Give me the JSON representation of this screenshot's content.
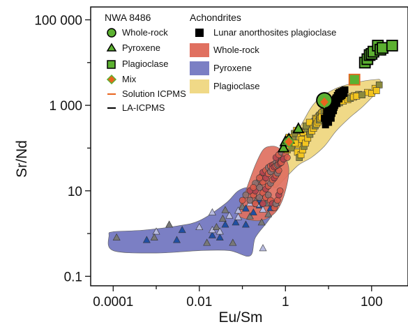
{
  "chart_data": {
    "type": "scatter",
    "xlabel": "Eu/Sm",
    "ylabel": "Sr/Nd",
    "x_scale": "log",
    "y_scale": "log",
    "xlim": [
      3e-05,
      700
    ],
    "ylim": [
      0.06,
      200000
    ],
    "x_ticks": [
      0.0001,
      0.01,
      1,
      100
    ],
    "x_tick_labels": [
      "0.0001",
      "0.01",
      "1",
      "100"
    ],
    "y_ticks": [
      0.1,
      10,
      1000,
      100000
    ],
    "y_tick_labels": [
      "0.1",
      "10",
      "1 000",
      "100 000"
    ],
    "grid": false,
    "legend_placement": "top",
    "legend": {
      "nwa_title": "NWA 8486",
      "achondrites_title": "Achondrites",
      "whole_rock": "Whole-rock",
      "pyroxene": "Pyroxene",
      "plagioclase": "Plagioclase",
      "mix": "Mix",
      "solution_icpms": "Solution ICPMS",
      "la_icpms": "LA-ICPMS",
      "lunar_anorthosites": "Lunar anorthosites plagioclase",
      "field_whole_rock": "Whole-rock",
      "field_pyroxene": "Pyroxene",
      "field_plagioclase": "Plagioclase"
    },
    "colors": {
      "whole_rock_field": "#e07060",
      "pyroxene_field": "#7b7fc4",
      "plagioclase_field": "#f0d987",
      "nwa_green": "#5cb131",
      "mix_orange": "#e8641e",
      "lunar_black": "#000000",
      "achondrite_pyx_blue": "#1f4fa3",
      "achondrite_pyx_grey": "#777777",
      "achondrite_wr_red": "#d65a4a",
      "achondrite_wr_grey": "#8a7070",
      "achondrite_plag_yellow": "#f3c51f",
      "achondrite_plag_olive": "#8b8a3d"
    },
    "fields": {
      "plagioclase": [
        [
          0.5,
          15
        ],
        [
          0.7,
          35
        ],
        [
          1.2,
          100
        ],
        [
          2.5,
          400
        ],
        [
          5,
          1200
        ],
        [
          15,
          2500
        ],
        [
          50,
          3500
        ],
        [
          120,
          4000
        ],
        [
          160,
          3800
        ],
        [
          140,
          2200
        ],
        [
          100,
          1500
        ],
        [
          60,
          900
        ],
        [
          30,
          500
        ],
        [
          15,
          250
        ],
        [
          8,
          110
        ],
        [
          4,
          60
        ],
        [
          2,
          40
        ],
        [
          1,
          20
        ],
        [
          0.6,
          12
        ]
      ],
      "whole_rock": [
        [
          0.08,
          3
        ],
        [
          0.12,
          10
        ],
        [
          0.2,
          40
        ],
        [
          0.3,
          90
        ],
        [
          0.45,
          110
        ],
        [
          0.7,
          100
        ],
        [
          1,
          60
        ],
        [
          1.2,
          30
        ],
        [
          1,
          10
        ],
        [
          0.7,
          4
        ],
        [
          0.45,
          2.5
        ],
        [
          0.25,
          2
        ],
        [
          0.12,
          2.2
        ]
      ],
      "pyroxene": [
        [
          8e-05,
          0.9
        ],
        [
          0.0001,
          0.4
        ],
        [
          0.001,
          0.35
        ],
        [
          0.01,
          0.4
        ],
        [
          0.05,
          0.4
        ],
        [
          0.15,
          0.3
        ],
        [
          0.2,
          0.8
        ],
        [
          0.4,
          2
        ],
        [
          0.6,
          4
        ],
        [
          0.5,
          6
        ],
        [
          0.3,
          9
        ],
        [
          0.15,
          12
        ],
        [
          0.08,
          10
        ],
        [
          0.04,
          5
        ],
        [
          0.01,
          2
        ],
        [
          0.003,
          1.5
        ],
        [
          0.0005,
          1.2
        ],
        [
          0.0001,
          1.1
        ]
      ]
    },
    "series": [
      {
        "name": "Lunar anorthosites plagioclase",
        "values": [
          [
            8,
            500
          ],
          [
            9,
            700
          ],
          [
            10,
            900
          ],
          [
            11,
            1000
          ],
          [
            12,
            1100
          ],
          [
            9.5,
            600
          ],
          [
            10.5,
            800
          ],
          [
            11.5,
            950
          ],
          [
            13,
            1200
          ],
          [
            14,
            1300
          ],
          [
            15,
            1500
          ],
          [
            16,
            1700
          ],
          [
            17,
            1900
          ],
          [
            18,
            2000
          ],
          [
            20,
            2100
          ],
          [
            22,
            2200
          ],
          [
            24,
            2300
          ],
          [
            21,
            1800
          ],
          [
            19,
            1600
          ],
          [
            23,
            1900
          ],
          [
            12.5,
            1000
          ],
          [
            14.5,
            1400
          ],
          [
            16.5,
            1500
          ],
          [
            18.5,
            1700
          ],
          [
            11,
            700
          ],
          [
            13.5,
            900
          ],
          [
            15.5,
            1100
          ],
          [
            17.5,
            1400
          ],
          [
            10,
            400
          ],
          [
            11.5,
            500
          ],
          [
            12,
            650
          ],
          [
            13,
            750
          ],
          [
            19.5,
            2000
          ],
          [
            21.5,
            2050
          ],
          [
            20.5,
            1700
          ],
          [
            22.5,
            2100
          ],
          [
            8.5,
            350
          ],
          [
            9.5,
            450
          ],
          [
            12,
            850
          ],
          [
            14,
            1000
          ]
        ]
      },
      {
        "name": "Pyroxene",
        "values": [
          [
            0.00012,
            0.8
          ],
          [
            0.0006,
            0.7
          ],
          [
            0.001,
            1.1
          ],
          [
            0.002,
            1.6
          ],
          [
            0.003,
            0.7
          ],
          [
            0.01,
            1.4
          ],
          [
            0.015,
            0.6
          ],
          [
            0.02,
            0.9
          ],
          [
            0.02,
            1.2
          ],
          [
            0.025,
            1.4
          ],
          [
            0.03,
            0.8
          ],
          [
            0.03,
            1.1
          ],
          [
            0.035,
            2.2
          ],
          [
            0.04,
            1.6
          ],
          [
            0.05,
            2.6
          ],
          [
            0.06,
            0.6
          ],
          [
            0.07,
            1.8
          ],
          [
            0.08,
            3.4
          ],
          [
            0.1,
            4.2
          ],
          [
            0.12,
            3.8
          ],
          [
            0.15,
            5.1
          ],
          [
            0.2,
            5.6
          ],
          [
            0.25,
            4.5
          ],
          [
            0.3,
            3.6
          ],
          [
            0.4,
            2.8
          ],
          [
            0.5,
            4.5
          ],
          [
            0.6,
            5.2
          ],
          [
            0.15,
            2.5
          ],
          [
            0.18,
            3.1
          ],
          [
            0.22,
            4.8
          ],
          [
            0.35,
            5
          ],
          [
            0.45,
            3.9
          ],
          [
            0.3,
            0.45
          ],
          [
            0.28,
            1.8
          ],
          [
            0.12,
            1.6
          ],
          [
            0.08,
            2.4
          ],
          [
            0.0009,
            0.8
          ],
          [
            0.004,
            1.2
          ],
          [
            0.02,
            3.1
          ],
          [
            0.04,
            3.5
          ],
          [
            0.25,
            6
          ]
        ]
      },
      {
        "name": "Whole-rock",
        "values": [
          [
            0.15,
            6
          ],
          [
            0.18,
            8
          ],
          [
            0.2,
            10
          ],
          [
            0.22,
            14
          ],
          [
            0.25,
            18
          ],
          [
            0.28,
            22
          ],
          [
            0.3,
            27
          ],
          [
            0.35,
            30
          ],
          [
            0.4,
            35
          ],
          [
            0.45,
            38
          ],
          [
            0.5,
            40
          ],
          [
            0.55,
            42
          ],
          [
            0.6,
            45
          ],
          [
            0.7,
            48
          ],
          [
            0.8,
            50
          ],
          [
            0.2,
            5
          ],
          [
            0.25,
            7
          ],
          [
            0.3,
            9
          ],
          [
            0.35,
            11
          ],
          [
            0.4,
            13
          ],
          [
            0.45,
            15
          ],
          [
            0.5,
            18
          ],
          [
            0.55,
            20
          ],
          [
            0.6,
            23
          ],
          [
            0.65,
            26
          ],
          [
            0.7,
            30
          ],
          [
            0.3,
            5
          ],
          [
            0.35,
            7
          ],
          [
            0.4,
            8
          ],
          [
            0.45,
            6
          ],
          [
            0.5,
            5
          ],
          [
            0.55,
            4
          ],
          [
            0.6,
            5
          ],
          [
            0.65,
            6
          ],
          [
            0.7,
            8
          ],
          [
            0.75,
            10
          ],
          [
            0.25,
            12
          ],
          [
            0.3,
            16
          ],
          [
            0.35,
            20
          ],
          [
            0.4,
            25
          ],
          [
            0.45,
            28
          ],
          [
            0.5,
            33
          ],
          [
            0.55,
            36
          ],
          [
            0.6,
            38
          ],
          [
            0.65,
            40
          ],
          [
            0.7,
            42
          ],
          [
            0.75,
            44
          ],
          [
            0.8,
            46
          ],
          [
            0.2,
            15
          ],
          [
            0.25,
            20
          ],
          [
            0.15,
            10
          ],
          [
            0.18,
            12
          ],
          [
            0.12,
            8
          ],
          [
            0.1,
            6
          ],
          [
            0.6,
            60
          ],
          [
            0.7,
            70
          ],
          [
            0.8,
            80
          ],
          [
            1,
            70
          ],
          [
            0.9,
            55
          ],
          [
            1.1,
            60
          ]
        ]
      },
      {
        "name": "Plagioclase",
        "values": [
          [
            0.9,
            100
          ],
          [
            1.1,
            90
          ],
          [
            1.3,
            150
          ],
          [
            1.5,
            180
          ],
          [
            2,
            120
          ],
          [
            2.5,
            200
          ],
          [
            2.8,
            250
          ],
          [
            3,
            150
          ],
          [
            3.5,
            300
          ],
          [
            4,
            350
          ],
          [
            4.5,
            400
          ],
          [
            5,
            500
          ],
          [
            5.5,
            450
          ],
          [
            6,
            550
          ],
          [
            6.5,
            600
          ],
          [
            7,
            650
          ],
          [
            7.5,
            700
          ],
          [
            8,
            750
          ],
          [
            9,
            800
          ],
          [
            10,
            900
          ],
          [
            12,
            1000
          ],
          [
            15,
            1200
          ],
          [
            20,
            1300
          ],
          [
            25,
            1400
          ],
          [
            30,
            1500
          ],
          [
            35,
            1600
          ],
          [
            40,
            1700
          ],
          [
            50,
            1800
          ],
          [
            80,
            2000
          ],
          [
            120,
            2500
          ],
          [
            150,
            3000
          ],
          [
            2.2,
            180
          ],
          [
            2.6,
            230
          ],
          [
            3.2,
            280
          ],
          [
            3.8,
            320
          ],
          [
            4.2,
            380
          ],
          [
            4.8,
            420
          ],
          [
            5.2,
            480
          ],
          [
            5.8,
            520
          ],
          [
            6.2,
            580
          ],
          [
            6.8,
            630
          ],
          [
            7.2,
            680
          ],
          [
            7.8,
            720
          ],
          [
            8.5,
            770
          ],
          [
            9.5,
            820
          ],
          [
            11,
            880
          ],
          [
            13,
            950
          ],
          [
            16,
            1100
          ],
          [
            18,
            1150
          ],
          [
            22,
            1250
          ],
          [
            28,
            1350
          ],
          [
            32,
            1450
          ],
          [
            38,
            1550
          ],
          [
            45,
            1650
          ],
          [
            60,
            1750
          ],
          [
            100,
            1900
          ],
          [
            130,
            2200
          ],
          [
            1.6,
            220
          ],
          [
            1.8,
            260
          ],
          [
            2.4,
            160
          ],
          [
            3,
            330
          ],
          [
            3.6,
            400
          ],
          [
            1.2,
            180
          ],
          [
            1.4,
            100
          ],
          [
            1.7,
            130
          ],
          [
            1.9,
            80
          ],
          [
            2.1,
            60
          ],
          [
            2.3,
            70
          ],
          [
            2.5,
            90
          ],
          [
            2.7,
            110
          ],
          [
            2.9,
            130
          ],
          [
            3.3,
            170
          ],
          [
            3.7,
            210
          ],
          [
            4.1,
            250
          ],
          [
            4.5,
            290
          ],
          [
            4.9,
            330
          ],
          [
            5.3,
            370
          ],
          [
            5.7,
            410
          ],
          [
            6.1,
            450
          ],
          [
            6.5,
            490
          ],
          [
            6.9,
            530
          ]
        ]
      },
      {
        "name": "NWA 8486 Whole-rock",
        "values": [
          [
            8,
            1300
          ]
        ]
      },
      {
        "name": "NWA 8486 Pyroxene",
        "values": [
          [
            0.9,
            100
          ],
          [
            1,
            140
          ],
          [
            1.2,
            160
          ],
          [
            2,
            280
          ]
        ]
      },
      {
        "name": "NWA 8486 Plagioclase",
        "values": [
          [
            40,
            4000
          ],
          [
            70,
            10000
          ],
          [
            80,
            12000
          ],
          [
            90,
            15000
          ],
          [
            100,
            16000
          ],
          [
            110,
            18000
          ],
          [
            140,
            25000
          ],
          [
            160,
            20000
          ],
          [
            180,
            22000
          ],
          [
            300,
            25000
          ]
        ]
      },
      {
        "name": "NWA 8486 Mix",
        "values": [
          [
            1.2,
            140
          ],
          [
            8,
            1200
          ]
        ]
      }
    ]
  }
}
